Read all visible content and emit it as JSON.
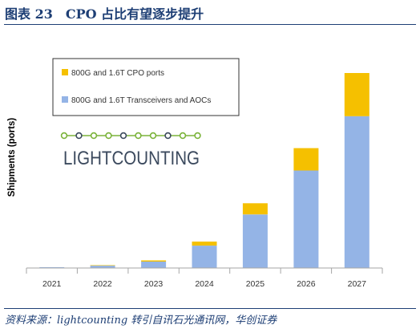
{
  "figure": {
    "title": "图表 23　CPO 占比有望逐步提升",
    "source": "资料来源：lightcounting 转引自讯石光通讯网，华创证券"
  },
  "logo": {
    "text": "LIGHTCOUNTING",
    "color": "#3c4a5e",
    "accent_color": "#7bb33a"
  },
  "colors": {
    "cpo": "#f5c000",
    "transceivers": "#94b4e6",
    "title": "#1e3f75",
    "axis": "#a6a6a6"
  },
  "chart_data": {
    "type": "bar",
    "stacked": true,
    "title": "",
    "xlabel": "",
    "ylabel": "Shipments (ports)",
    "y_ticks_shown": false,
    "grid": false,
    "legend": "top-left",
    "categories": [
      "2021",
      "2022",
      "2023",
      "2024",
      "2025",
      "2026",
      "2027"
    ],
    "ylim": [
      0,
      245
    ],
    "series": [
      {
        "name": "800G and 1.6T Transceivers and AOCs",
        "color": "#94b4e6",
        "values": [
          1,
          3,
          8,
          28,
          67,
          122,
          190
        ]
      },
      {
        "name": "800G and 1.6T CPO ports",
        "color": "#f5c000",
        "values": [
          0,
          0.5,
          1.5,
          5,
          14,
          28,
          54
        ]
      }
    ]
  }
}
